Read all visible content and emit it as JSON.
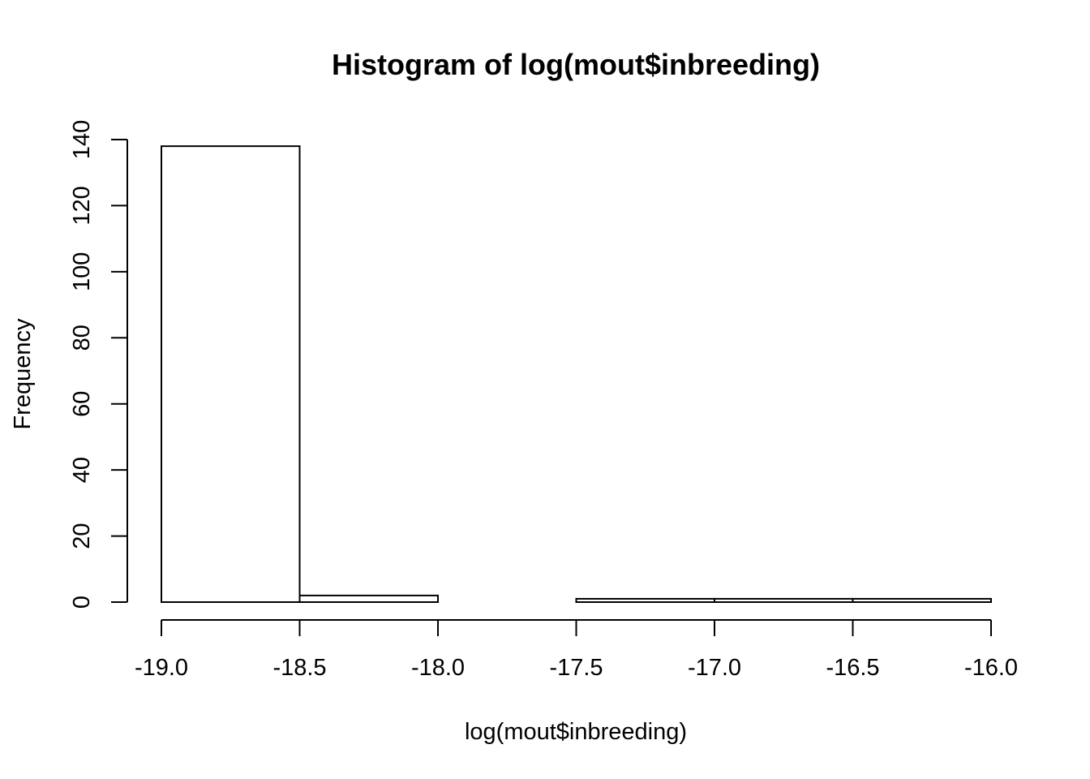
{
  "chart_data": {
    "type": "bar",
    "title": "Histogram of log(mout$inbreeding)",
    "xlabel": "log(mout$inbreeding)",
    "ylabel": "Frequency",
    "bins": [
      {
        "x0": -19.0,
        "x1": -18.5,
        "count": 138
      },
      {
        "x0": -18.5,
        "x1": -18.0,
        "count": 2
      },
      {
        "x0": -18.0,
        "x1": -17.5,
        "count": 0
      },
      {
        "x0": -17.5,
        "x1": -17.0,
        "count": 1
      },
      {
        "x0": -17.0,
        "x1": -16.5,
        "count": 1
      },
      {
        "x0": -16.5,
        "x1": -16.0,
        "count": 1
      }
    ],
    "xlim": [
      -19.0,
      -16.0
    ],
    "ylim": [
      0,
      140
    ],
    "xticks": [
      "-19.0",
      "-18.5",
      "-18.0",
      "-17.5",
      "-17.0",
      "-16.5",
      "-16.0"
    ],
    "yticks": [
      "0",
      "20",
      "40",
      "60",
      "80",
      "100",
      "120",
      "140"
    ],
    "grid": false
  }
}
